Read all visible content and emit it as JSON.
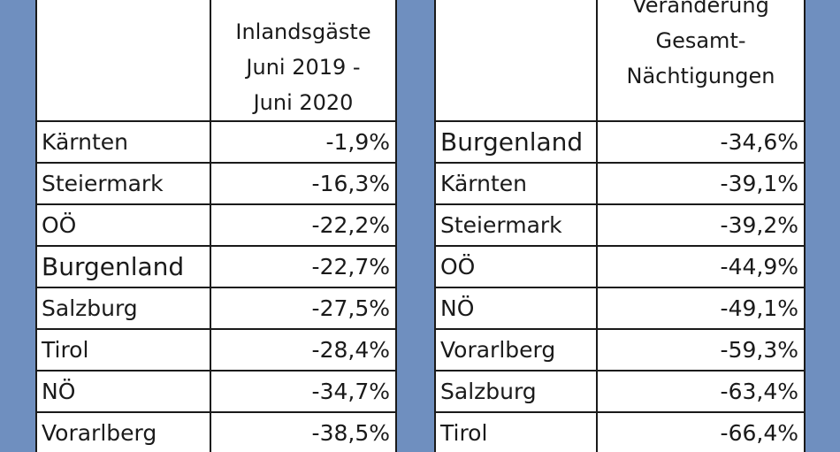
{
  "left_table": {
    "header_lines": [
      "Inlandsgäste",
      "Juni 2019 -",
      "Juni 2020"
    ],
    "rows": [
      {
        "region": "Kärnten",
        "value": "-1,9%"
      },
      {
        "region": "Steiermark",
        "value": "-16,3%"
      },
      {
        "region": "OÖ",
        "value": "-22,2%"
      },
      {
        "region": "Burgenland",
        "value": "-22,7%"
      },
      {
        "region": "Salzburg",
        "value": "-27,5%"
      },
      {
        "region": "Tirol",
        "value": "-28,4%"
      },
      {
        "region": "NÖ",
        "value": "-34,7%"
      },
      {
        "region": "Vorarlberg",
        "value": "-38,5%"
      }
    ]
  },
  "right_table": {
    "header_lines": [
      "Veränderung",
      "Gesamt-",
      "Nächtigungen"
    ],
    "rows": [
      {
        "region": "Burgenland",
        "value": "-34,6%"
      },
      {
        "region": "Kärnten",
        "value": "-39,1%"
      },
      {
        "region": "Steiermark",
        "value": "-39,2%"
      },
      {
        "region": "OÖ",
        "value": "-44,9%"
      },
      {
        "region": "NÖ",
        "value": "-49,1%"
      },
      {
        "region": "Vorarlberg",
        "value": "-59,3%"
      },
      {
        "region": "Salzburg",
        "value": "-63,4%"
      },
      {
        "region": "Tirol",
        "value": "-66,4%"
      }
    ]
  },
  "colors": {
    "background": "#6f8fbf",
    "table": "#ffffff",
    "border": "#1a1a1a"
  }
}
